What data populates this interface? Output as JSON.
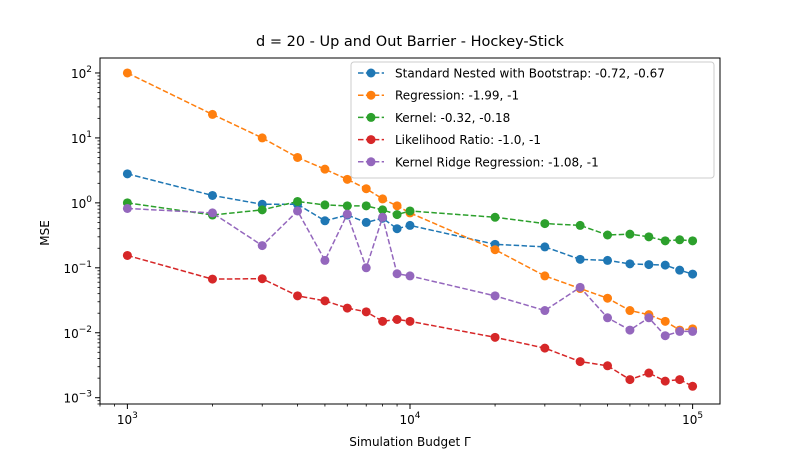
{
  "chart_data": {
    "type": "line",
    "title": "d = 20 - Up and Out Barrier - Hockey-Stick",
    "xlabel": "Simulation Budget Γ",
    "ylabel": "MSE",
    "xscale": "log",
    "yscale": "log",
    "xlim": [
      800,
      125000
    ],
    "ylim": [
      0.0008,
      170
    ],
    "xticks": [
      {
        "value": 1000,
        "mantissa": "10",
        "exponent": "3"
      },
      {
        "value": 10000,
        "mantissa": "10",
        "exponent": "4"
      },
      {
        "value": 100000,
        "mantissa": "10",
        "exponent": "5"
      }
    ],
    "yticks": [
      {
        "value": 0.001,
        "mantissa": "10",
        "exponent": "−3"
      },
      {
        "value": 0.01,
        "mantissa": "10",
        "exponent": "−2"
      },
      {
        "value": 0.1,
        "mantissa": "10",
        "exponent": "−1"
      },
      {
        "value": 1,
        "mantissa": "10",
        "exponent": "0"
      },
      {
        "value": 10,
        "mantissa": "10",
        "exponent": "1"
      },
      {
        "value": 100,
        "mantissa": "10",
        "exponent": "2"
      }
    ],
    "grid": false,
    "legend_position": "top-right",
    "x": [
      1000,
      2000,
      3000,
      4000,
      5000,
      6000,
      7000,
      8000,
      9000,
      10000,
      20000,
      30000,
      40000,
      50000,
      60000,
      70000,
      80000,
      90000,
      100000
    ],
    "series": [
      {
        "name": "Standard Nested with Bootstrap: -0.72, -0.67",
        "color": "#1f77b4",
        "values": [
          2.8,
          1.3,
          0.95,
          0.95,
          0.53,
          0.65,
          0.5,
          0.58,
          0.4,
          0.45,
          0.23,
          0.21,
          0.135,
          0.13,
          0.115,
          0.112,
          0.11,
          0.092,
          0.08
        ]
      },
      {
        "name": "Regression: -1.99, -1",
        "color": "#ff7f0e",
        "values": [
          100,
          23,
          10,
          5,
          3.3,
          2.3,
          1.65,
          1.15,
          0.9,
          0.7,
          0.19,
          0.075,
          0.048,
          0.034,
          0.022,
          0.019,
          0.015,
          0.011,
          0.0115
        ]
      },
      {
        "name": "Kernel: -0.32, -0.18",
        "color": "#2ca02c",
        "values": [
          1.0,
          0.65,
          0.78,
          1.05,
          0.93,
          0.9,
          0.9,
          0.78,
          0.66,
          0.75,
          0.6,
          0.48,
          0.45,
          0.32,
          0.33,
          0.3,
          0.26,
          0.27,
          0.26
        ]
      },
      {
        "name": "Likelihood Ratio: -1.0, -1",
        "color": "#d62728",
        "values": [
          0.155,
          0.067,
          0.068,
          0.037,
          0.031,
          0.024,
          0.021,
          0.015,
          0.016,
          0.015,
          0.0085,
          0.0058,
          0.0036,
          0.0031,
          0.0019,
          0.0024,
          0.0018,
          0.0019,
          0.0015
        ]
      },
      {
        "name": "Kernel Ridge Regression: -1.08, -1",
        "color": "#9467bd",
        "values": [
          0.82,
          0.7,
          0.22,
          0.75,
          0.13,
          0.67,
          0.1,
          0.6,
          0.081,
          0.075,
          0.037,
          0.022,
          0.05,
          0.017,
          0.011,
          0.017,
          0.009,
          0.0105,
          0.0105
        ]
      }
    ]
  }
}
